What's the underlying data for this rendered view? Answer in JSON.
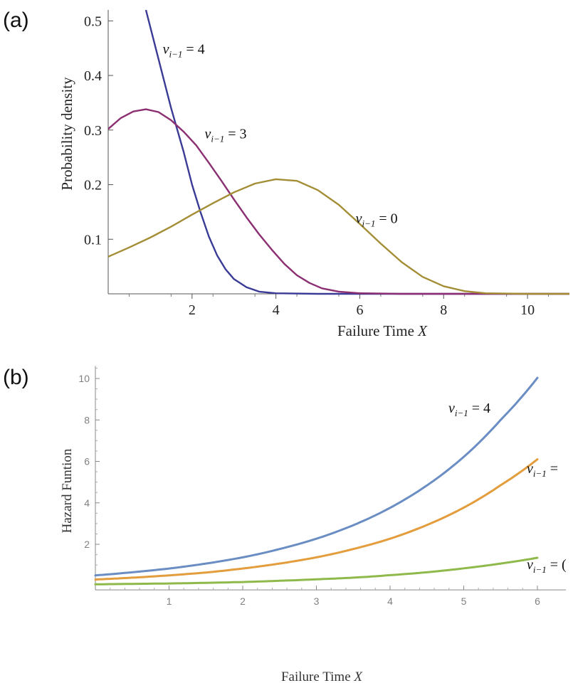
{
  "chart_data": [
    {
      "type": "line",
      "panel_label": "(a)",
      "xlabel": "Failure Time X",
      "ylabel": "Probability density",
      "xlim": [
        0,
        11
      ],
      "ylim": [
        0,
        0.52
      ],
      "xticks": [
        2,
        4,
        6,
        8,
        10
      ],
      "yticks": [
        0.1,
        0.2,
        0.3,
        0.4,
        0.5
      ],
      "series": [
        {
          "color": "#3a3b96",
          "annotation": "v_{i-1} = 4",
          "x": [
            0.9,
            1.2,
            1.5,
            1.8,
            2.0,
            2.2,
            2.4,
            2.6,
            2.8,
            3.0,
            3.3,
            3.6,
            4.0,
            5.0,
            6.0,
            8.0,
            11.0
          ],
          "y": [
            0.52,
            0.43,
            0.34,
            0.26,
            0.2,
            0.15,
            0.105,
            0.07,
            0.045,
            0.027,
            0.012,
            0.004,
            0.001,
            0.0,
            0.0,
            0.0,
            0.0
          ]
        },
        {
          "color": "#8b2f72",
          "annotation": "v_{i-1} = 3",
          "x": [
            0.0,
            0.3,
            0.6,
            0.9,
            1.2,
            1.5,
            1.8,
            2.1,
            2.4,
            2.7,
            3.0,
            3.3,
            3.6,
            3.9,
            4.2,
            4.5,
            4.8,
            5.1,
            5.5,
            6.0,
            7.0,
            11.0
          ],
          "y": [
            0.302,
            0.322,
            0.334,
            0.338,
            0.333,
            0.318,
            0.297,
            0.272,
            0.24,
            0.207,
            0.173,
            0.14,
            0.109,
            0.081,
            0.055,
            0.034,
            0.02,
            0.01,
            0.004,
            0.001,
            0.0,
            0.0
          ]
        },
        {
          "color": "#a38e36",
          "annotation": "v_{i-1} = 0",
          "x": [
            0.0,
            0.5,
            1.0,
            1.5,
            2.0,
            2.5,
            3.0,
            3.5,
            4.0,
            4.5,
            5.0,
            5.5,
            6.0,
            6.5,
            7.0,
            7.5,
            8.0,
            8.5,
            9.0,
            10.0,
            11.0
          ],
          "y": [
            0.068,
            0.085,
            0.103,
            0.123,
            0.145,
            0.166,
            0.186,
            0.202,
            0.21,
            0.207,
            0.19,
            0.163,
            0.128,
            0.092,
            0.058,
            0.031,
            0.014,
            0.005,
            0.001,
            0.0,
            0.0
          ]
        }
      ]
    },
    {
      "type": "line",
      "panel_label": "(b)",
      "xlabel": "Failure Time X",
      "ylabel": "Hazard Funtion",
      "xlim": [
        0,
        6
      ],
      "ylim": [
        -0.2,
        10.6
      ],
      "xticks": [
        1,
        2,
        3,
        4,
        5,
        6
      ],
      "yticks": [
        2,
        4,
        6,
        8,
        10
      ],
      "series": [
        {
          "color": "#6a8dc3",
          "annotation": "v_{i-1} = 4",
          "x": [
            0.0,
            0.5,
            1.0,
            1.5,
            2.0,
            2.5,
            3.0,
            3.5,
            4.0,
            4.5,
            5.0,
            5.5,
            6.0
          ],
          "y": [
            0.5,
            0.65,
            0.83,
            1.07,
            1.37,
            1.77,
            2.27,
            2.92,
            3.76,
            4.84,
            6.22,
            8.0,
            10.03
          ]
        },
        {
          "color": "#e49d3c",
          "annotation": "v_{i-1} =",
          "x": [
            0.0,
            0.5,
            1.0,
            1.5,
            2.0,
            2.5,
            3.0,
            3.5,
            4.0,
            4.5,
            5.0,
            5.5,
            6.0
          ],
          "y": [
            0.3,
            0.39,
            0.5,
            0.64,
            0.83,
            1.07,
            1.37,
            1.77,
            2.27,
            2.93,
            3.77,
            4.85,
            6.1
          ]
        },
        {
          "color": "#8fb94a",
          "annotation": "v_{i-1} = (",
          "x": [
            0.0,
            0.5,
            1.0,
            1.5,
            2.0,
            2.5,
            3.0,
            3.5,
            4.0,
            4.5,
            5.0,
            5.5,
            6.0
          ],
          "y": [
            0.07,
            0.09,
            0.11,
            0.14,
            0.18,
            0.24,
            0.31,
            0.39,
            0.51,
            0.65,
            0.84,
            1.07,
            1.35
          ]
        }
      ]
    }
  ]
}
